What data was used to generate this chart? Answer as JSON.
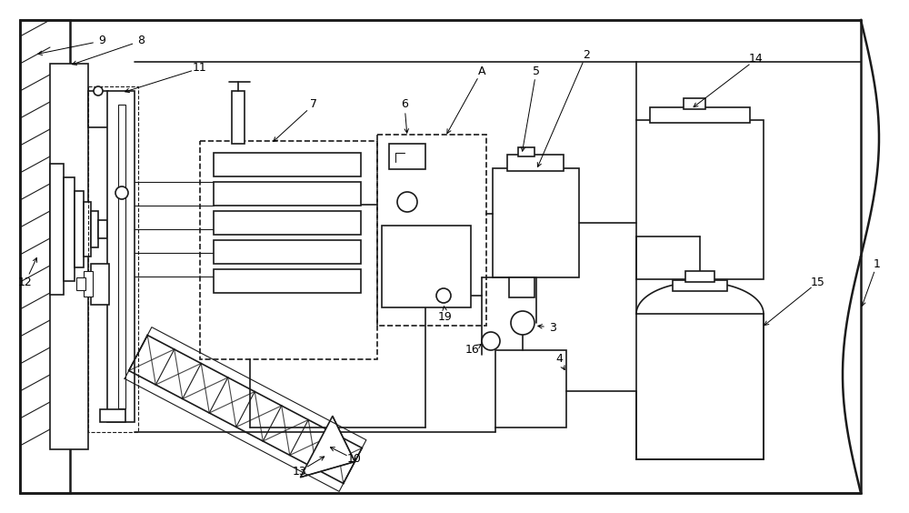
{
  "bg_color": "#ffffff",
  "line_color": "#1a1a1a",
  "fig_width": 10.0,
  "fig_height": 5.64,
  "dpi": 100,
  "lw_main": 1.2,
  "lw_thin": 0.8,
  "lw_thick": 1.8,
  "label_fs": 9
}
